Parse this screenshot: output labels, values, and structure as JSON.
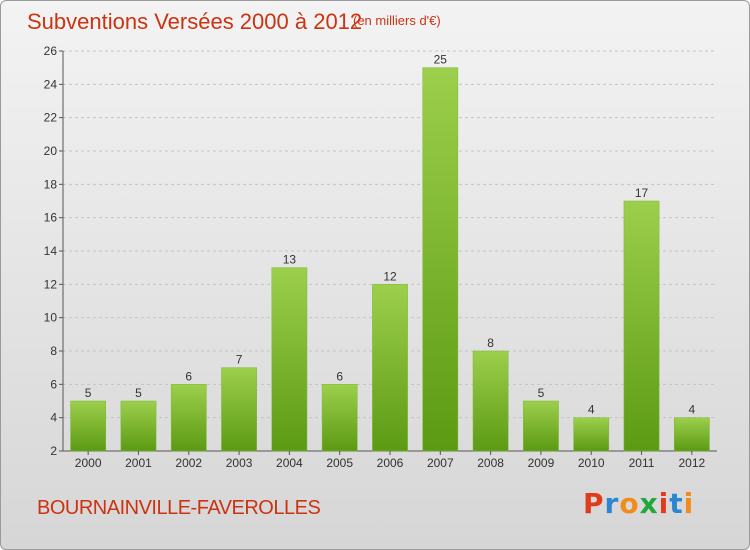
{
  "header": {
    "title": "Subventions Versées 2000 à 2012",
    "subtitle": "(en milliers d'€)"
  },
  "footer": {
    "commune": "BOURNAINVILLE-FAVEROLLES",
    "logo_text": "Proxiti"
  },
  "colors": {
    "bar_light": "#9ccf4c",
    "bar_dark": "#5c9a14",
    "title_red": "#cc3311",
    "logo_letters": [
      "#e23a1c",
      "#2a86d1",
      "#f08c1c",
      "#23a63b",
      "#e23a1c",
      "#2a86d1",
      "#f08c1c"
    ]
  },
  "chart_data": {
    "type": "bar",
    "title": "Subventions Versées 2000 à 2012",
    "subtitle": "(en milliers d'€)",
    "categories": [
      "2000",
      "2001",
      "2002",
      "2003",
      "2004",
      "2005",
      "2006",
      "2007",
      "2008",
      "2009",
      "2010",
      "2011",
      "2012"
    ],
    "values": [
      5,
      5,
      6,
      7,
      13,
      6,
      12,
      25,
      8,
      5,
      4,
      17,
      4
    ],
    "ylim": [
      2,
      26
    ],
    "yticks": [
      2,
      4,
      6,
      8,
      10,
      12,
      14,
      16,
      18,
      20,
      22,
      24,
      26
    ],
    "grid": true,
    "legend": "none"
  }
}
